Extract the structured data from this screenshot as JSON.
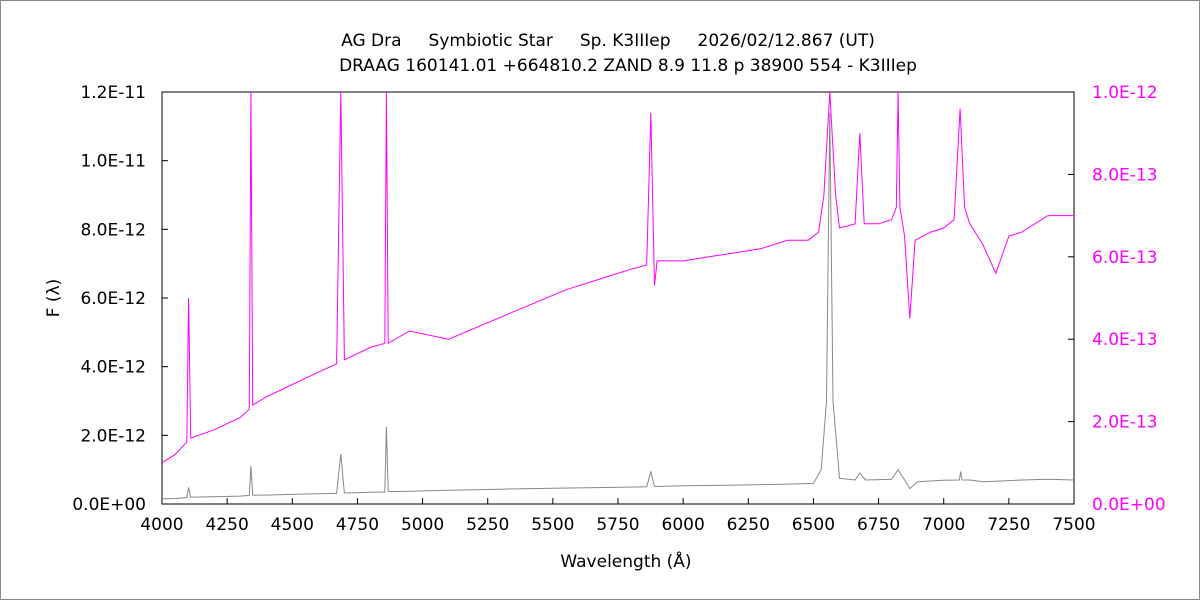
{
  "chart_data": {
    "type": "line",
    "title": "AG Dra     Symbiotic Star     Sp. K3IIIep     2026/02/12.867 (UT)",
    "subtitle": "DRAAG 160141.01 +664810.2 ZAND 8.9 11.8 p 38900 554 - K3IIIep",
    "xlabel": "Wavelength (Å)",
    "ylabel": "F (λ)",
    "xlim": [
      4000,
      7500
    ],
    "ylim_left": [
      0,
      1.2e-11
    ],
    "ylim_right": [
      0,
      1e-12
    ],
    "x_ticks": [
      "4000",
      "4250",
      "4500",
      "4750",
      "5000",
      "5250",
      "5500",
      "5750",
      "6000",
      "6250",
      "6500",
      "6750",
      "7000",
      "7250",
      "7500"
    ],
    "y_left_ticks": [
      "0.0E+00",
      "2.0E-12",
      "4.0E-12",
      "6.0E-12",
      "8.0E-12",
      "1.0E-11",
      "1.2E-11"
    ],
    "y_right_ticks": [
      "0.0E+00",
      "2.0E-13",
      "4.0E-13",
      "6.0E-13",
      "8.0E-13",
      "1.0E-12"
    ],
    "grid": false,
    "legend": "none",
    "series": [
      {
        "axis": "left",
        "color": "#888888",
        "x": [
          4000,
          4050,
          4095,
          4102,
          4110,
          4200,
          4300,
          4335,
          4341,
          4348,
          4400,
          4500,
          4600,
          4670,
          4686,
          4700,
          4800,
          4855,
          4861,
          4868,
          4950,
          5100,
          5300,
          5500,
          5700,
          5860,
          5876,
          5890,
          6000,
          6200,
          6400,
          6500,
          6530,
          6550,
          6563,
          6575,
          6600,
          6660,
          6678,
          6700,
          6800,
          6825,
          6850,
          6870,
          6900,
          7000,
          7060,
          7065,
          7070,
          7100,
          7150,
          7200,
          7300,
          7400,
          7500
        ],
        "values": [
          1.5e-13,
          1.6e-13,
          1.9e-13,
          4.8e-13,
          2e-13,
          2.1e-13,
          2.3e-13,
          2.5e-13,
          1.1e-12,
          2.6e-13,
          2.6e-13,
          2.8e-13,
          3e-13,
          3.1e-13,
          1.45e-12,
          3.2e-13,
          3.4e-13,
          3.5e-13,
          2.25e-12,
          3.6e-13,
          3.7e-13,
          4e-13,
          4.3e-13,
          4.6e-13,
          4.8e-13,
          5e-13,
          9.5e-13,
          5.1e-13,
          5.3e-13,
          5.5e-13,
          5.8e-13,
          6e-13,
          1e-12,
          3e-12,
          1.14e-11,
          3e-12,
          7.5e-13,
          7e-13,
          9e-13,
          7e-13,
          7.2e-13,
          1e-12,
          7e-13,
          4.5e-13,
          6.5e-13,
          6.9e-13,
          7e-13,
          9.5e-13,
          7e-13,
          7e-13,
          6.5e-13,
          6.6e-13,
          7e-13,
          7.2e-13,
          7e-13
        ]
      },
      {
        "axis": "right",
        "color": "#ff00ff",
        "x": [
          4000,
          4050,
          4095,
          4102,
          4110,
          4200,
          4300,
          4335,
          4341,
          4348,
          4400,
          4500,
          4600,
          4670,
          4686,
          4700,
          4800,
          4855,
          4861,
          4868,
          4950,
          5100,
          5250,
          5400,
          5550,
          5700,
          5800,
          5860,
          5876,
          5890,
          5900,
          6000,
          6100,
          6200,
          6300,
          6400,
          6480,
          6520,
          6540,
          6563,
          6585,
          6600,
          6660,
          6678,
          6695,
          6750,
          6800,
          6818,
          6825,
          6832,
          6850,
          6870,
          6890,
          6950,
          7000,
          7040,
          7063,
          7080,
          7100,
          7150,
          7200,
          7250,
          7300,
          7400,
          7500
        ],
        "values": [
          1e-13,
          1.2e-13,
          1.5e-13,
          5e-13,
          1.6e-13,
          1.8e-13,
          2.1e-13,
          2.3e-13,
          1e-12,
          2.4e-13,
          2.6e-13,
          2.9e-13,
          3.2e-13,
          3.4e-13,
          1e-12,
          3.5e-13,
          3.8e-13,
          3.9e-13,
          1e-12,
          3.9e-13,
          4.2e-13,
          4e-13,
          4.4e-13,
          4.8e-13,
          5.2e-13,
          5.5e-13,
          5.7e-13,
          5.8e-13,
          9.5e-13,
          5.3e-13,
          5.9e-13,
          5.9e-13,
          6e-13,
          6.1e-13,
          6.2e-13,
          6.4e-13,
          6.4e-13,
          6.6e-13,
          7.5e-13,
          1e-12,
          7.5e-13,
          6.7e-13,
          6.8e-13,
          9e-13,
          6.8e-13,
          6.8e-13,
          6.9e-13,
          7.2e-13,
          1e-12,
          7.2e-13,
          6.5e-13,
          4.5e-13,
          6.4e-13,
          6.6e-13,
          6.7e-13,
          6.9e-13,
          9.6e-13,
          7.2e-13,
          6.8e-13,
          6.3e-13,
          5.6e-13,
          6.5e-13,
          6.6e-13,
          7e-13,
          7e-13
        ]
      }
    ]
  }
}
